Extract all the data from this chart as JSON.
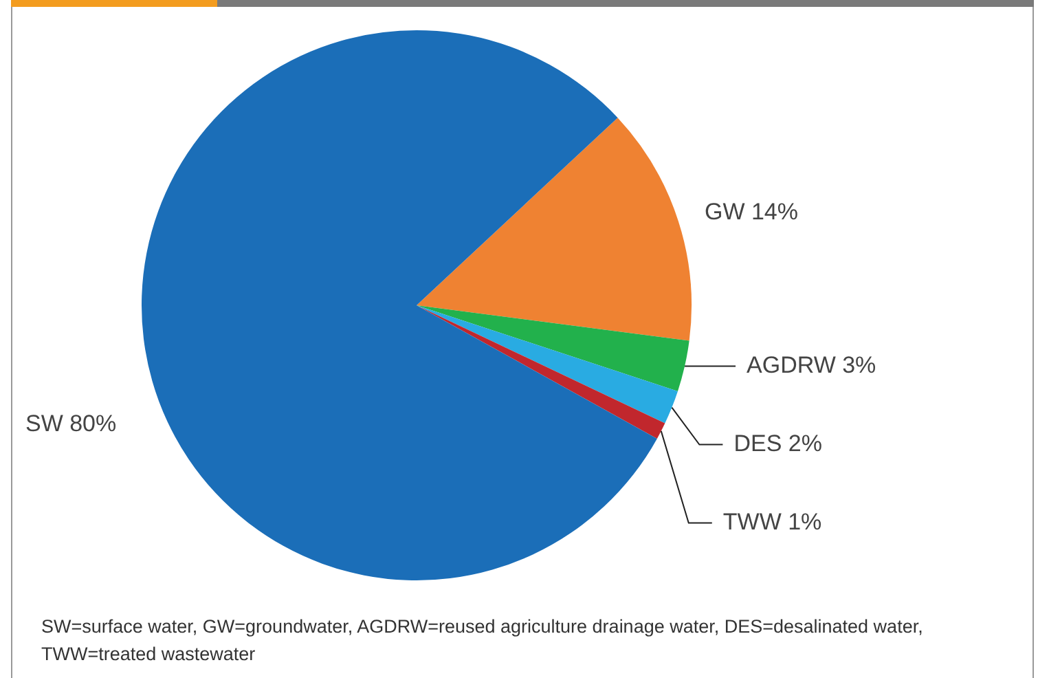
{
  "chart_data": {
    "type": "pie",
    "categories": [
      "GW",
      "AGDRW",
      "DES",
      "TWW",
      "SW"
    ],
    "values": [
      14,
      3,
      2,
      1,
      80
    ],
    "value_labels": [
      "14%",
      "3%",
      "2%",
      "1%",
      "80%"
    ],
    "colors": [
      "#ef8232",
      "#22b14c",
      "#29abe2",
      "#c1272d",
      "#1b6eb8"
    ],
    "legend": false,
    "annotations": [
      "SW=surface water, GW=groundwater, AGDRW=reused agriculture drainage water, DES=desalinated water, TWW=treated wastewater"
    ]
  }
}
